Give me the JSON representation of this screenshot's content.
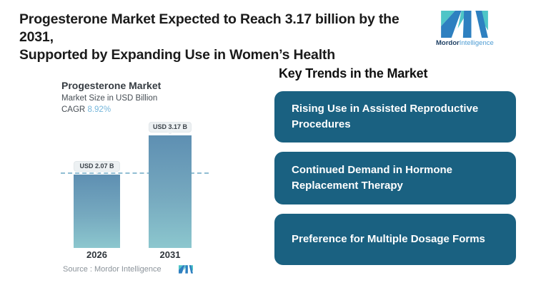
{
  "header": {
    "title_line1": "Progesterone Market Expected to Reach 3.17 billion by the 2031,",
    "title_line2": "Supported by Expanding Use in Women’s Health"
  },
  "brand": {
    "name_bold": "Mordor",
    "name_light": "Intelligence",
    "teal": "#4ec5c7",
    "blue": "#2e80c0"
  },
  "chart_data": {
    "type": "bar",
    "title": "Progesterone Market",
    "subtitle": "Market Size in USD Billion",
    "cagr_label": "CAGR",
    "cagr_value": "8.92%",
    "categories": [
      "2026",
      "2031"
    ],
    "values": [
      2.07,
      3.17
    ],
    "value_labels": [
      "USD 2.07 B",
      "USD 3.17 B"
    ],
    "ylim": [
      0,
      3.17
    ],
    "reference_line": 2.07,
    "grid": "off",
    "legend": "none",
    "bar_gradient_top": "#5e8fb2",
    "bar_gradient_bottom": "#8cc7ce",
    "source": "Source :  Mordor Intelligence"
  },
  "trends": {
    "heading": "Key Trends in the Market",
    "box_color": "#1a6181",
    "items": [
      "Rising Use in Assisted Reproductive Procedures",
      "Continued Demand in Hormone Replacement Therapy",
      "Preference for Multiple Dosage Forms"
    ]
  }
}
